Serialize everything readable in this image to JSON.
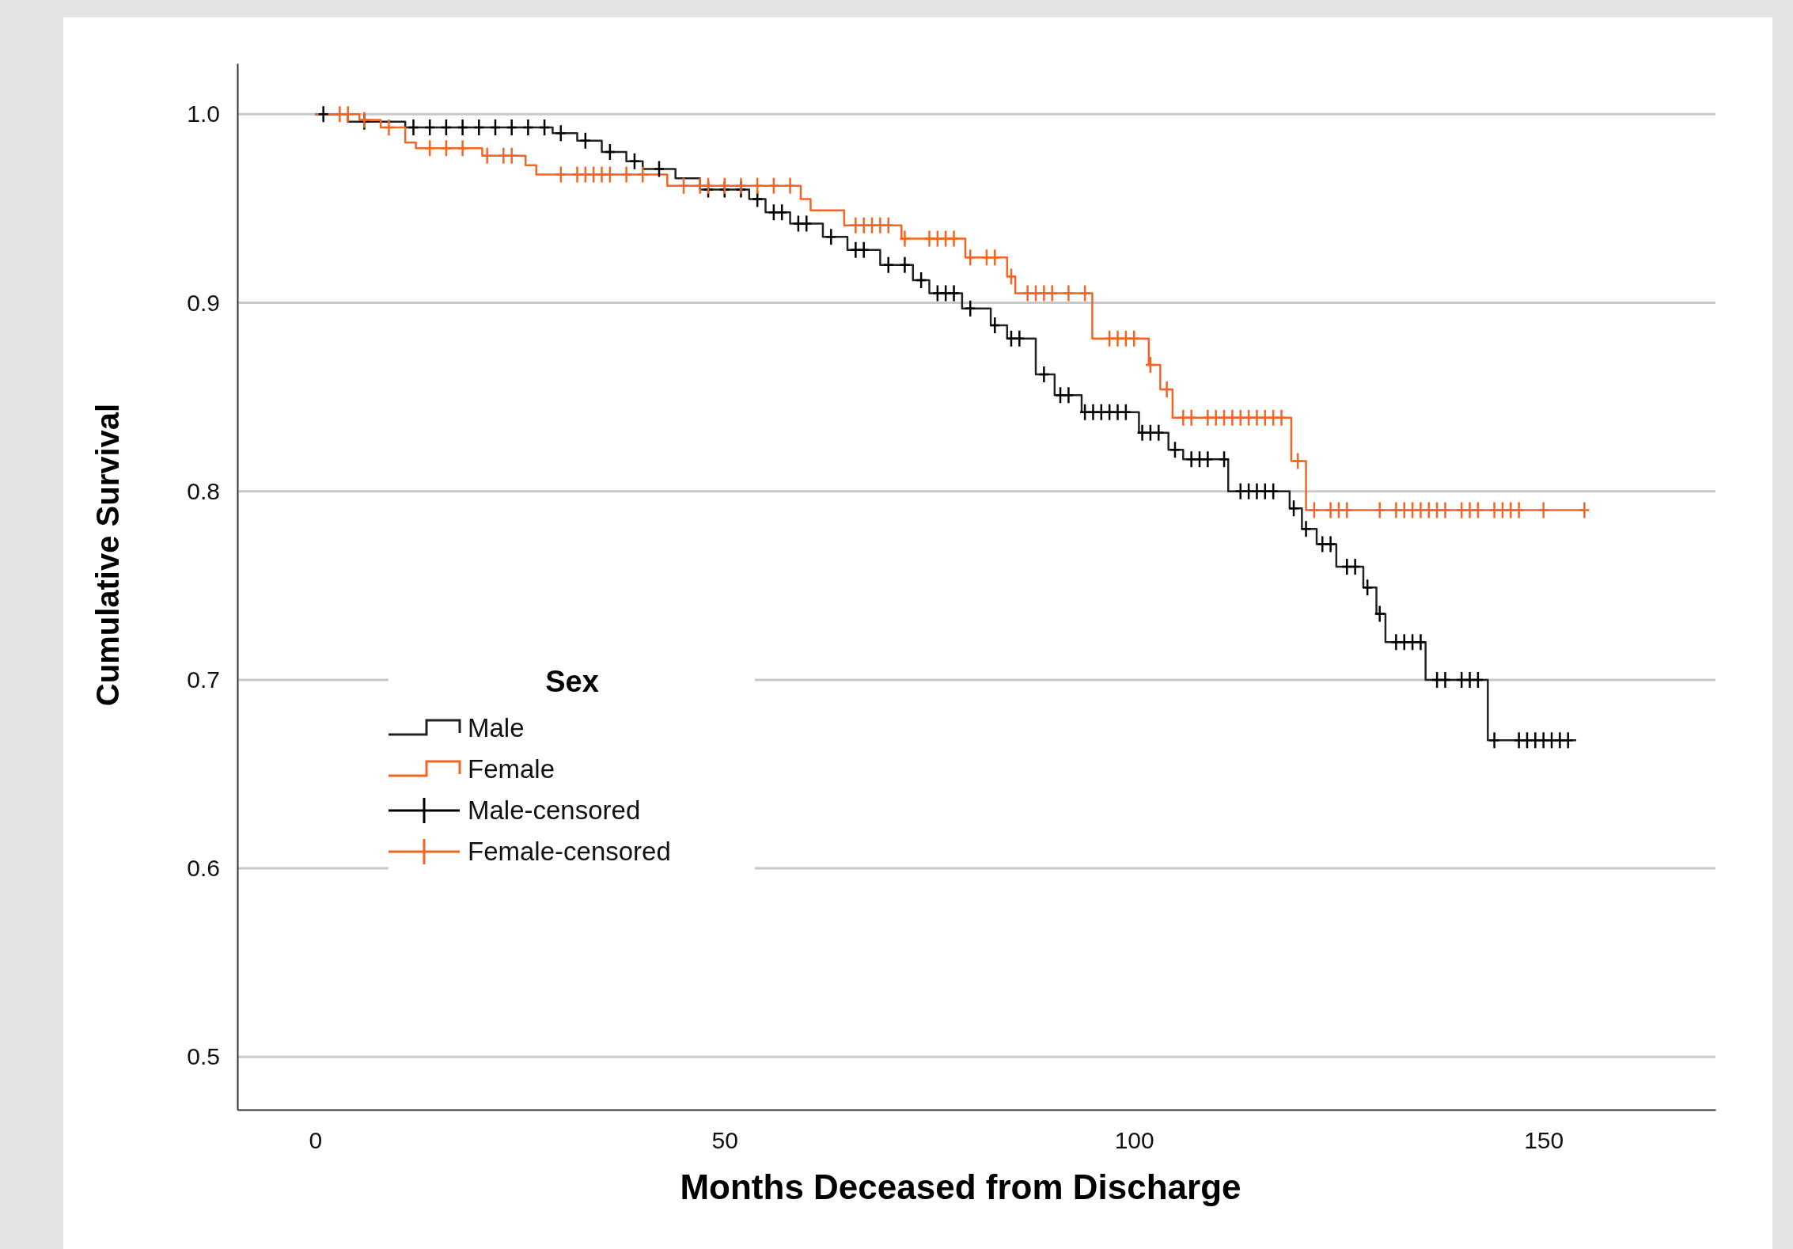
{
  "chart_data": {
    "type": "step",
    "xlabel": "Months Deceased from Discharge",
    "ylabel": "Cumulative Survival",
    "legend_title": "Sex",
    "legend": "bottom left",
    "grid": "y",
    "xlim": [
      -9.5,
      171
    ],
    "xticks": [
      0,
      50,
      100,
      150
    ],
    "ylim": [
      0.472,
      1.027
    ],
    "yticks": [
      {
        "value": 0.5,
        "label": "0.5"
      },
      {
        "value": 0.6,
        "label": "0.6"
      },
      {
        "value": 0.7,
        "label": "0.7"
      },
      {
        "value": 0.8,
        "label": "0.8"
      },
      {
        "value": 0.9,
        "label": "0.9"
      },
      {
        "value": 1,
        "label": "1.0"
      }
    ],
    "series": [
      {
        "name": "Male",
        "color": "#222222",
        "x": [
          0,
          4,
          11,
          29,
          32,
          35,
          38,
          40,
          44,
          47,
          53,
          55,
          58,
          62,
          65,
          69,
          73,
          75,
          79,
          82.5,
          84.5,
          88,
          90.3,
          93.6,
          100.6,
          104.2,
          106,
          111.5,
          119,
          120.5,
          122.3,
          124.7,
          128,
          129.6,
          130.7,
          135.6,
          143.2,
          154
        ],
        "values": [
          1,
          0.996,
          0.993,
          0.99,
          0.986,
          0.98,
          0.975,
          0.971,
          0.966,
          0.96,
          0.955,
          0.948,
          0.942,
          0.935,
          0.928,
          0.92,
          0.912,
          0.905,
          0.897,
          0.888,
          0.881,
          0.862,
          0.851,
          0.842,
          0.831,
          0.822,
          0.817,
          0.8,
          0.791,
          0.78,
          0.772,
          0.76,
          0.749,
          0.735,
          0.72,
          0.7,
          0.668,
          0.668
        ]
      },
      {
        "name": "Female",
        "color": "#f26522",
        "x": [
          0,
          5.4,
          8,
          11,
          12.3,
          20.4,
          25.7,
          27,
          43,
          59.3,
          60.5,
          64.6,
          71.6,
          79.4,
          84.5,
          85.5,
          94.9,
          101.8,
          103.2,
          104.7,
          119.2,
          121,
          155
        ],
        "values": [
          1,
          0.997,
          0.993,
          0.985,
          0.982,
          0.978,
          0.973,
          0.968,
          0.962,
          0.955,
          0.949,
          0.941,
          0.934,
          0.924,
          0.914,
          0.905,
          0.881,
          0.867,
          0.854,
          0.839,
          0.816,
          0.79,
          0.79
        ]
      },
      {
        "name": "Male-censored",
        "type": "scatter",
        "marker": "cross",
        "color": "#000000",
        "x": [
          1,
          6,
          12,
          14,
          16,
          18,
          20,
          22,
          24,
          26,
          28,
          30,
          33,
          36,
          39,
          42,
          48,
          50,
          52,
          54,
          56,
          57,
          59,
          60,
          63,
          66,
          67,
          70,
          72,
          74,
          76,
          77,
          78,
          80,
          83,
          85,
          86,
          89,
          91,
          92,
          94,
          95,
          96,
          97,
          98,
          99,
          101,
          102,
          103,
          105,
          107,
          108,
          109,
          111,
          113,
          114,
          115,
          116,
          117,
          119.5,
          121,
          123,
          124,
          126,
          127,
          128.5,
          130,
          132,
          133,
          134,
          135,
          137,
          138,
          140,
          141,
          142,
          144,
          147,
          148,
          149,
          150,
          151,
          152,
          153
        ],
        "values": [
          1,
          0.996,
          0.993,
          0.993,
          0.993,
          0.993,
          0.993,
          0.993,
          0.993,
          0.993,
          0.993,
          0.99,
          0.986,
          0.98,
          0.975,
          0.971,
          0.96,
          0.96,
          0.96,
          0.955,
          0.948,
          0.948,
          0.942,
          0.942,
          0.935,
          0.928,
          0.928,
          0.92,
          0.92,
          0.912,
          0.905,
          0.905,
          0.905,
          0.897,
          0.888,
          0.881,
          0.881,
          0.862,
          0.851,
          0.851,
          0.842,
          0.842,
          0.842,
          0.842,
          0.842,
          0.842,
          0.831,
          0.831,
          0.831,
          0.822,
          0.817,
          0.817,
          0.817,
          0.817,
          0.8,
          0.8,
          0.8,
          0.8,
          0.8,
          0.791,
          0.78,
          0.772,
          0.772,
          0.76,
          0.76,
          0.749,
          0.735,
          0.72,
          0.72,
          0.72,
          0.72,
          0.7,
          0.7,
          0.7,
          0.7,
          0.7,
          0.668,
          0.668,
          0.668,
          0.668,
          0.668,
          0.668,
          0.668,
          0.668
        ]
      },
      {
        "name": "Female-censored",
        "type": "scatter",
        "marker": "cross",
        "color": "#f26522",
        "x": [
          3,
          4,
          6,
          9,
          14,
          16,
          18,
          21,
          23,
          24,
          30,
          32,
          33,
          34,
          35,
          36,
          38,
          40,
          45,
          47,
          48,
          50,
          52,
          54,
          56,
          58,
          66,
          67,
          68,
          69,
          70,
          72,
          75,
          76,
          77,
          78,
          80,
          82,
          83,
          85,
          87,
          88,
          89,
          90,
          92,
          94,
          97,
          98,
          99,
          100,
          102,
          104,
          106,
          107,
          109,
          110,
          111,
          112,
          113,
          114,
          115,
          116,
          117,
          118,
          120,
          122,
          124,
          125,
          126,
          130,
          132,
          133,
          134,
          135,
          136,
          137,
          138,
          140,
          141,
          142,
          144,
          145,
          146,
          147,
          150,
          155
        ],
        "values": [
          1,
          1,
          0.997,
          0.993,
          0.982,
          0.982,
          0.982,
          0.978,
          0.978,
          0.978,
          0.968,
          0.968,
          0.968,
          0.968,
          0.968,
          0.968,
          0.968,
          0.968,
          0.962,
          0.962,
          0.962,
          0.962,
          0.962,
          0.962,
          0.962,
          0.962,
          0.941,
          0.941,
          0.941,
          0.941,
          0.941,
          0.934,
          0.934,
          0.934,
          0.934,
          0.934,
          0.924,
          0.924,
          0.924,
          0.914,
          0.905,
          0.905,
          0.905,
          0.905,
          0.905,
          0.905,
          0.881,
          0.881,
          0.881,
          0.881,
          0.867,
          0.854,
          0.839,
          0.839,
          0.839,
          0.839,
          0.839,
          0.839,
          0.839,
          0.839,
          0.839,
          0.839,
          0.839,
          0.839,
          0.816,
          0.79,
          0.79,
          0.79,
          0.79,
          0.79,
          0.79,
          0.79,
          0.79,
          0.79,
          0.79,
          0.79,
          0.79,
          0.79,
          0.79,
          0.79,
          0.79,
          0.79,
          0.79,
          0.79,
          0.79,
          0.79
        ]
      }
    ]
  }
}
